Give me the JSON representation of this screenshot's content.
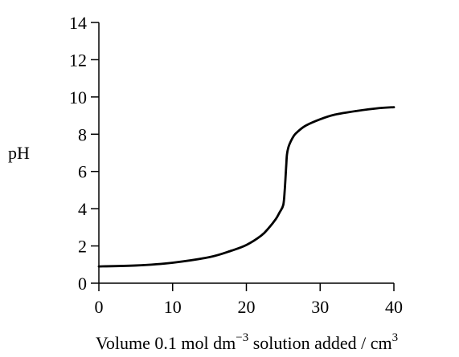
{
  "chart_data": {
    "type": "line",
    "title": "",
    "xlabel": "Volume 0.1 mol dm",
    "xlabel_sup1": "−3",
    "xlabel_mid": " solution added / cm",
    "xlabel_sup2": "3",
    "ylabel": "pH",
    "xlim": [
      0,
      40
    ],
    "ylim": [
      0,
      14
    ],
    "x_ticks": [
      "0",
      "10",
      "20",
      "30",
      "40"
    ],
    "y_ticks": [
      "0",
      "2",
      "4",
      "6",
      "8",
      "10",
      "12",
      "14"
    ],
    "grid": false,
    "legend": "none",
    "line_color": "#000000",
    "series": [
      {
        "x": [
          0,
          5,
          10,
          15,
          18,
          20,
          22,
          23,
          24,
          24.5,
          25,
          25.2,
          25.4,
          25.5,
          25.7,
          26,
          26.5,
          27,
          28,
          30,
          32,
          35,
          38,
          40
        ],
        "y": [
          0.9,
          0.95,
          1.1,
          1.4,
          1.75,
          2.05,
          2.55,
          2.95,
          3.45,
          3.8,
          4.2,
          5.0,
          6.3,
          6.9,
          7.3,
          7.6,
          7.95,
          8.15,
          8.45,
          8.8,
          9.05,
          9.25,
          9.4,
          9.45
        ]
      }
    ]
  }
}
